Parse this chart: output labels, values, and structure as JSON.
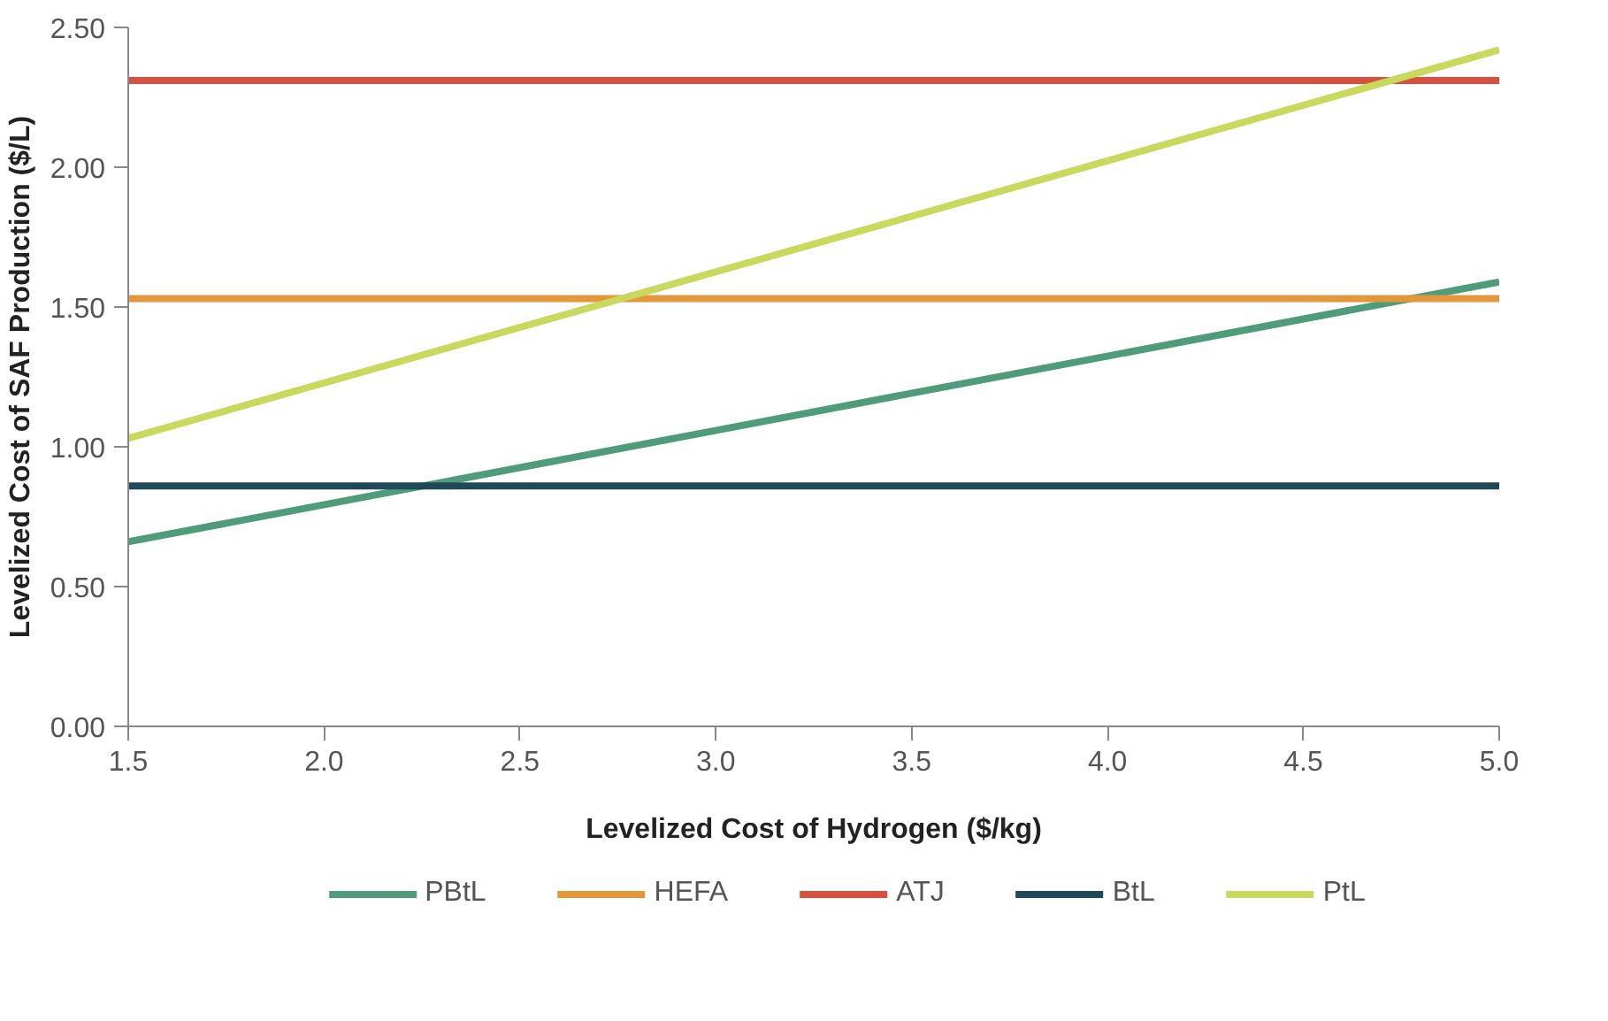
{
  "chart_data": {
    "type": "line",
    "xlabel": "Levelized Cost of Hydrogen ($/kg)",
    "ylabel": "Levelized Cost of SAF Production ($/L)",
    "x": [
      1.5,
      5.0
    ],
    "series": [
      {
        "name": "PBtL",
        "color": "#4e9c7b",
        "values": [
          0.66,
          1.59
        ]
      },
      {
        "name": "HEFA",
        "color": "#e3963a",
        "values": [
          1.53,
          1.53
        ]
      },
      {
        "name": "ATJ",
        "color": "#d9503f",
        "values": [
          2.31,
          2.31
        ]
      },
      {
        "name": "BtL",
        "color": "#1f4858",
        "values": [
          0.86,
          0.86
        ]
      },
      {
        "name": "PtL",
        "color": "#c9d95e",
        "values": [
          1.03,
          2.42
        ]
      }
    ],
    "xlim": [
      1.5,
      5.0
    ],
    "xticks": [
      {
        "value": 1.5,
        "label": "1.5"
      },
      {
        "value": 2,
        "label": "2.0"
      },
      {
        "value": 2.5,
        "label": "2.5"
      },
      {
        "value": 3,
        "label": "3.0"
      },
      {
        "value": 3.5,
        "label": "3.5"
      },
      {
        "value": 4,
        "label": "4.0"
      },
      {
        "value": 4.5,
        "label": "4.5"
      },
      {
        "value": 5,
        "label": "5.0"
      }
    ],
    "ylim": [
      0,
      2.5
    ],
    "yticks": [
      {
        "value": 0,
        "label": "0.00"
      },
      {
        "value": 0.5,
        "label": "0.50"
      },
      {
        "value": 1,
        "label": "1.00"
      },
      {
        "value": 1.5,
        "label": "1.50"
      },
      {
        "value": 2,
        "label": "2.00"
      },
      {
        "value": 2.5,
        "label": "2.50"
      }
    ],
    "grid": false,
    "legend": "bottom",
    "marker": "none",
    "line_style": "solid"
  }
}
